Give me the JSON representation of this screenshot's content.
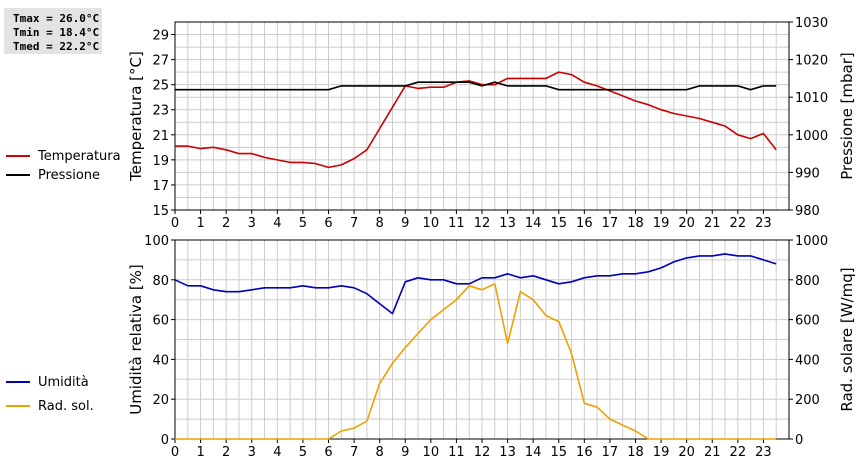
{
  "stats": {
    "tmax": "Tmax = 26.0°C",
    "tmin": "Tmin = 18.4°C",
    "tmed": "Tmed = 22.2°C"
  },
  "colors": {
    "temperature": "#cc0000",
    "pressure": "#000000",
    "humidity": "#0000bb",
    "solar": "#f0a000",
    "grid": "#cccccc"
  },
  "chart_data": [
    {
      "type": "line",
      "xlim": [
        0,
        24
      ],
      "xticks": [
        "0",
        "1",
        "2",
        "3",
        "4",
        "5",
        "6",
        "7",
        "8",
        "9",
        "10",
        "11",
        "12",
        "13",
        "14",
        "15",
        "16",
        "17",
        "18",
        "19",
        "20",
        "21",
        "22",
        "23"
      ],
      "ylabel": "Temperatura [°C]",
      "ylim": [
        15,
        30
      ],
      "yticks": [
        "15",
        "17",
        "19",
        "21",
        "23",
        "25",
        "27",
        "29"
      ],
      "y2label": "Pressione [mbar]",
      "y2lim": [
        980,
        1030
      ],
      "y2ticks": [
        "980",
        "990",
        "1000",
        "1010",
        "1020",
        "1030"
      ],
      "grid": true,
      "legend_position": "left",
      "series": [
        {
          "name": "Temperatura",
          "axis": "left",
          "points": [
            [
              0,
              20.1
            ],
            [
              0.5,
              20.1
            ],
            [
              1,
              19.9
            ],
            [
              1.5,
              20.0
            ],
            [
              2,
              19.8
            ],
            [
              2.5,
              19.5
            ],
            [
              3,
              19.5
            ],
            [
              3.5,
              19.2
            ],
            [
              4,
              19.0
            ],
            [
              4.5,
              18.8
            ],
            [
              5,
              18.8
            ],
            [
              5.5,
              18.7
            ],
            [
              6,
              18.4
            ],
            [
              6.5,
              18.6
            ],
            [
              7,
              19.1
            ],
            [
              7.5,
              19.8
            ],
            [
              8,
              21.5
            ],
            [
              8.5,
              23.2
            ],
            [
              9,
              24.9
            ],
            [
              9.5,
              24.7
            ],
            [
              10,
              24.8
            ],
            [
              10.5,
              24.8
            ],
            [
              11,
              25.2
            ],
            [
              11.5,
              25.3
            ],
            [
              12,
              25.0
            ],
            [
              12.5,
              25.0
            ],
            [
              13,
              25.5
            ],
            [
              13.5,
              25.5
            ],
            [
              14,
              25.5
            ],
            [
              14.5,
              25.5
            ],
            [
              15,
              26.0
            ],
            [
              15.5,
              25.8
            ],
            [
              16,
              25.2
            ],
            [
              16.5,
              24.9
            ],
            [
              17,
              24.5
            ],
            [
              17.5,
              24.1
            ],
            [
              18,
              23.7
            ],
            [
              18.5,
              23.4
            ],
            [
              19,
              23.0
            ],
            [
              19.5,
              22.7
            ],
            [
              20,
              22.5
            ],
            [
              20.5,
              22.3
            ],
            [
              21,
              22.0
            ],
            [
              21.5,
              21.7
            ],
            [
              22,
              21.0
            ],
            [
              22.5,
              20.7
            ],
            [
              23,
              21.1
            ],
            [
              23.5,
              19.8
            ]
          ]
        },
        {
          "name": "Pressione",
          "axis": "right",
          "points": [
            [
              0,
              1012
            ],
            [
              6,
              1012
            ],
            [
              6.5,
              1013
            ],
            [
              9,
              1013
            ],
            [
              9.5,
              1014
            ],
            [
              11.5,
              1014
            ],
            [
              12,
              1013
            ],
            [
              12.5,
              1014
            ],
            [
              13,
              1013
            ],
            [
              14.5,
              1013
            ],
            [
              15,
              1012
            ],
            [
              19.5,
              1012
            ],
            [
              20,
              1012
            ],
            [
              20.5,
              1013
            ],
            [
              22,
              1013
            ],
            [
              22.5,
              1012
            ],
            [
              23,
              1013
            ],
            [
              23.5,
              1013
            ]
          ]
        }
      ]
    },
    {
      "type": "line",
      "xlim": [
        0,
        24
      ],
      "xticks": [
        "0",
        "1",
        "2",
        "3",
        "4",
        "5",
        "6",
        "7",
        "8",
        "9",
        "10",
        "11",
        "12",
        "13",
        "14",
        "15",
        "16",
        "17",
        "18",
        "19",
        "20",
        "21",
        "22",
        "23"
      ],
      "ylabel": "Umidità relativa [%]",
      "ylim": [
        0,
        100
      ],
      "yticks": [
        "0",
        "20",
        "40",
        "60",
        "80",
        "100"
      ],
      "y2label": "Rad. solare [W/mq]",
      "y2lim": [
        0,
        1000
      ],
      "y2ticks": [
        "0",
        "200",
        "400",
        "600",
        "800",
        "1000"
      ],
      "grid": true,
      "legend_position": "left",
      "series": [
        {
          "name": "Umidità",
          "axis": "left",
          "points": [
            [
              0,
              80
            ],
            [
              0.5,
              77
            ],
            [
              1,
              77
            ],
            [
              1.5,
              75
            ],
            [
              2,
              74
            ],
            [
              2.5,
              74
            ],
            [
              3,
              75
            ],
            [
              3.5,
              76
            ],
            [
              4,
              76
            ],
            [
              4.5,
              76
            ],
            [
              5,
              77
            ],
            [
              5.5,
              76
            ],
            [
              6,
              76
            ],
            [
              6.5,
              77
            ],
            [
              7,
              76
            ],
            [
              7.5,
              73
            ],
            [
              8,
              68
            ],
            [
              8.5,
              63
            ],
            [
              9,
              79
            ],
            [
              9.5,
              81
            ],
            [
              10,
              80
            ],
            [
              10.5,
              80
            ],
            [
              11,
              78
            ],
            [
              11.5,
              78
            ],
            [
              12,
              81
            ],
            [
              12.5,
              81
            ],
            [
              13,
              83
            ],
            [
              13.5,
              81
            ],
            [
              14,
              82
            ],
            [
              14.5,
              80
            ],
            [
              15,
              78
            ],
            [
              15.5,
              79
            ],
            [
              16,
              81
            ],
            [
              16.5,
              82
            ],
            [
              17,
              82
            ],
            [
              17.5,
              83
            ],
            [
              18,
              83
            ],
            [
              18.5,
              84
            ],
            [
              19,
              86
            ],
            [
              19.5,
              89
            ],
            [
              20,
              91
            ],
            [
              20.5,
              92
            ],
            [
              21,
              92
            ],
            [
              21.5,
              93
            ],
            [
              22,
              92
            ],
            [
              22.5,
              92
            ],
            [
              23,
              90
            ],
            [
              23.5,
              88
            ]
          ]
        },
        {
          "name": "Rad. sol.",
          "axis": "right",
          "points": [
            [
              0,
              0
            ],
            [
              6,
              0
            ],
            [
              6.5,
              40
            ],
            [
              7,
              55
            ],
            [
              7.5,
              90
            ],
            [
              8,
              280
            ],
            [
              8.5,
              380
            ],
            [
              9,
              460
            ],
            [
              9.5,
              530
            ],
            [
              10,
              600
            ],
            [
              10.5,
              650
            ],
            [
              11,
              700
            ],
            [
              11.5,
              770
            ],
            [
              12,
              750
            ],
            [
              12.5,
              780
            ],
            [
              13,
              480
            ],
            [
              13.5,
              740
            ],
            [
              14,
              700
            ],
            [
              14.5,
              620
            ],
            [
              15,
              590
            ],
            [
              15.5,
              430
            ],
            [
              16,
              180
            ],
            [
              16.5,
              160
            ],
            [
              17,
              100
            ],
            [
              17.5,
              70
            ],
            [
              18,
              40
            ],
            [
              18.5,
              0
            ],
            [
              23.5,
              0
            ]
          ]
        }
      ]
    }
  ]
}
